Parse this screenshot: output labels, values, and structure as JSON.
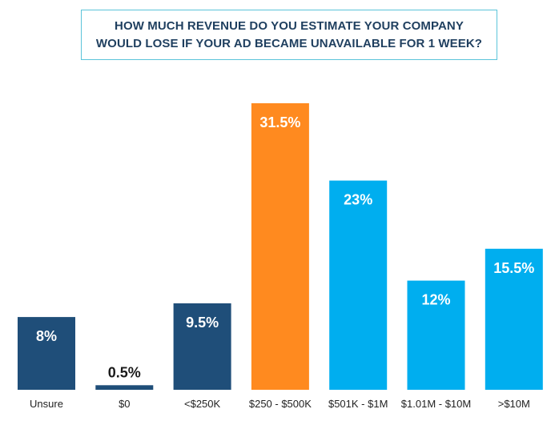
{
  "title": {
    "line1": "HOW MUCH REVENUE DO YOU ESTIMATE YOUR COMPANY",
    "line2": "WOULD LOSE IF YOUR AD BECAME UNAVAILABLE FOR 1 WEEK?"
  },
  "colors": {
    "dark_blue": "#1f4e79",
    "orange": "#ff8a1f",
    "light_blue": "#00aeef",
    "title_text": "#1f3f5f",
    "title_border": "#5bc4d9"
  },
  "chart_data": {
    "type": "bar",
    "title": "HOW MUCH REVENUE DO YOU ESTIMATE YOUR COMPANY WOULD LOSE IF YOUR AD BECAME UNAVAILABLE FOR 1 WEEK?",
    "xlabel": "",
    "ylabel": "",
    "ylim": [
      0,
      31.5
    ],
    "grid": false,
    "legend": "none",
    "categories": [
      "Unsure",
      "$0",
      "<$250K",
      "$250 - $500K",
      "$501K - $1M",
      "$1.01M - $10M",
      ">$10M"
    ],
    "values": [
      8,
      0.5,
      9.5,
      31.5,
      23,
      12,
      15.5
    ],
    "labels": [
      "8%",
      "0.5%",
      "9.5%",
      "31.5%",
      "23%",
      "12%",
      "15.5%"
    ],
    "bar_colors": [
      "#1f4e79",
      "#1f4e79",
      "#1f4e79",
      "#ff8a1f",
      "#00aeef",
      "#00aeef",
      "#00aeef"
    ]
  }
}
